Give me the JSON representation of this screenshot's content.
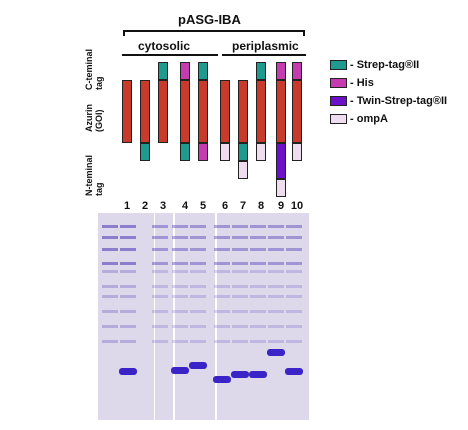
{
  "figure": {
    "title": "pASG-IBA",
    "groups": {
      "cytosolic": "cytosolic",
      "periplasmic": "periplasmic"
    },
    "row_labels": {
      "c_terminal": [
        "C-teminal",
        "tag"
      ],
      "azurin": [
        "Azurin",
        "(GOI)"
      ],
      "n_terminal": [
        "N-teminal",
        "tag"
      ]
    },
    "lanes": [
      "1",
      "2",
      "3",
      "4",
      "5",
      "6",
      "7",
      "8",
      "9",
      "10"
    ],
    "constructs": [
      {
        "lane": "1",
        "c": "",
        "n": ""
      },
      {
        "lane": "2",
        "c": "",
        "n": "strep"
      },
      {
        "lane": "3",
        "c": "strep",
        "n": ""
      },
      {
        "lane": "4",
        "c": "his",
        "n": "strep"
      },
      {
        "lane": "5",
        "c": "strep",
        "n": "his"
      },
      {
        "lane": "6",
        "c": "",
        "n": "ompA"
      },
      {
        "lane": "7",
        "c": "",
        "n": "strep+ompA"
      },
      {
        "lane": "8",
        "c": "strep",
        "n": "ompA"
      },
      {
        "lane": "9",
        "c": "his",
        "n": "twin+ompA"
      },
      {
        "lane": "10",
        "c": "his",
        "n": "ompA"
      }
    ],
    "legend": [
      {
        "label": "- Strep-tag®II",
        "color": "#1f9a8e"
      },
      {
        "label": "- His",
        "color": "#c53bb0"
      },
      {
        "label": "- Twin-Strep-tag®II",
        "color": "#6d11c9"
      },
      {
        "label": "- ompA",
        "color": "#efdcef"
      }
    ],
    "colors": {
      "azurin": "#c83a2a",
      "strep": "#1f9a8e",
      "his": "#c53bb0",
      "twin": "#6d11c9",
      "ompA": "#efdcef",
      "gel_bg": "#ddd8ea",
      "band": "#3a24c8"
    },
    "gel_lanes": [
      {
        "lane": "1",
        "band": ""
      },
      {
        "lane": "2",
        "band": "low"
      },
      {
        "lane": "3",
        "band": ""
      },
      {
        "lane": "4",
        "band": "mid"
      },
      {
        "lane": "5",
        "band": "midhigh"
      },
      {
        "lane": "6",
        "band": "lowest"
      },
      {
        "lane": "7",
        "band": "mid2"
      },
      {
        "lane": "8",
        "band": "mid2"
      },
      {
        "lane": "9",
        "band": "high"
      },
      {
        "lane": "10",
        "band": "low"
      }
    ]
  }
}
